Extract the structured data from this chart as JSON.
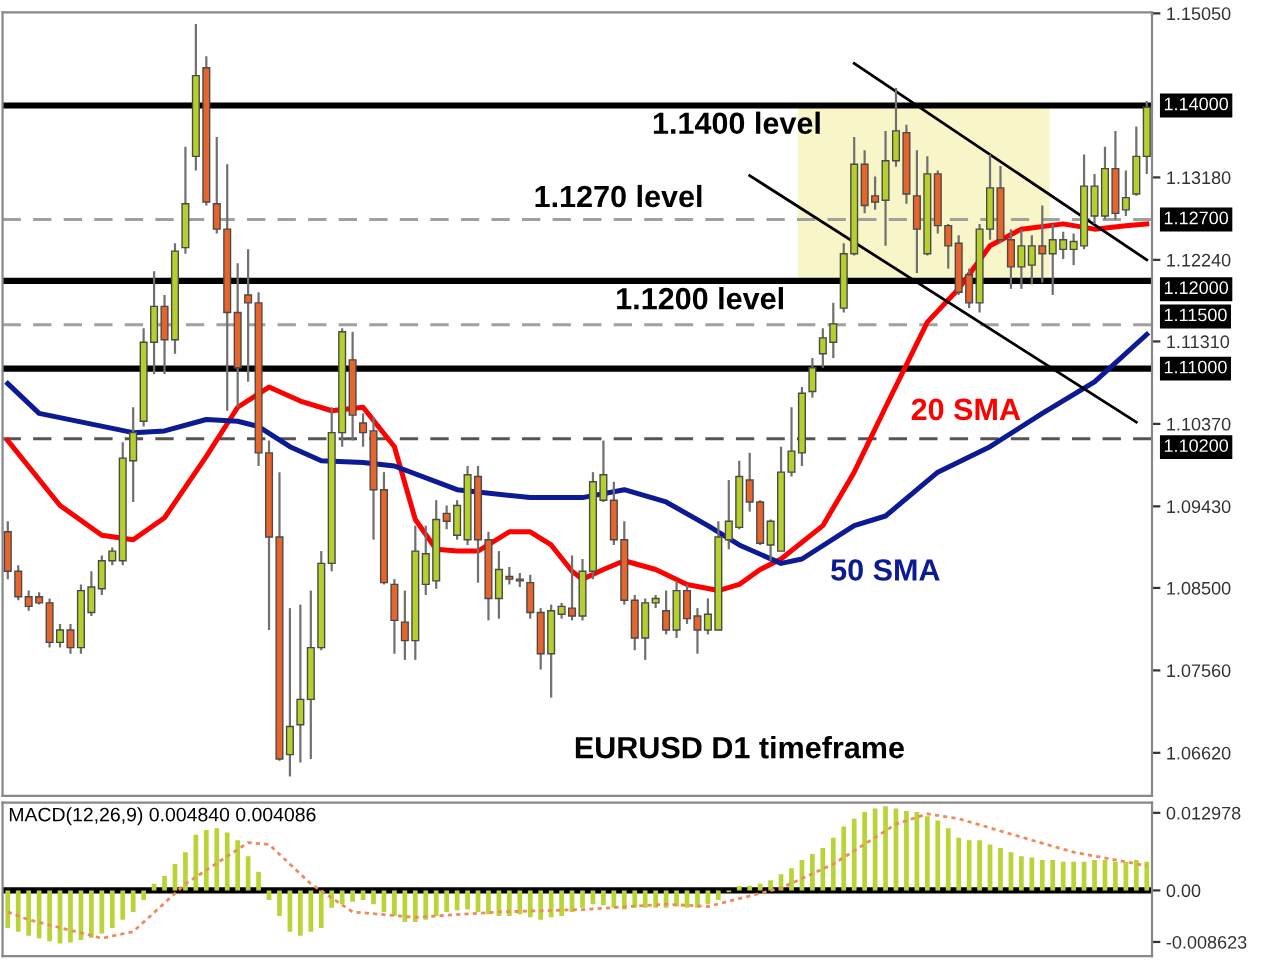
{
  "chart_data": [
    {
      "type": "candlestick",
      "tick_labels": "y",
      "ylim": [
        1.0613,
        1.1506
      ],
      "yticks": [
        {
          "value": 1.1505,
          "label": "1.15050"
        },
        {
          "value": 1.1318,
          "label": "1.13180"
        },
        {
          "value": 1.1224,
          "label": "1.12240"
        },
        {
          "value": 1.1131,
          "label": "1.11310"
        },
        {
          "value": 1.1037,
          "label": "1.10370"
        },
        {
          "value": 1.0943,
          "label": "1.09430"
        },
        {
          "value": 1.085,
          "label": "1.08500"
        },
        {
          "value": 1.0756,
          "label": "1.07560"
        },
        {
          "value": 1.0662,
          "label": "1.06620"
        }
      ],
      "colors": [
        "#e7652b",
        "#e7652b",
        "#e7652b",
        "#e7652b",
        "#e7652b",
        "#b5cf2c",
        "#e7652b",
        "#b5cf2c",
        "#b5cf2c",
        "#b5cf2c",
        "#b5cf2c",
        "#b5cf2c",
        "#b5cf2c",
        "#b5cf2c",
        "#b5cf2c",
        "#e7652b",
        "#b5cf2c",
        "#b5cf2c",
        "#b5cf2c",
        "#e7652b",
        "#e7652b",
        "#e7652b",
        "#e7652b",
        "#e7652b",
        "#e7652b",
        "#e7652b",
        "#e7652b",
        "#b5cf2c",
        "#b5cf2c",
        "#b5cf2c",
        "#b5cf2c",
        "#b5cf2c",
        "#b5cf2c",
        "#e7652b",
        "#e7652b",
        "#e7652b",
        "#e7652b",
        "#e7652b",
        "#e7652b",
        "#b5cf2c",
        "#b5cf2c",
        "#b5cf2c",
        "#e7652b",
        "#b5cf2c",
        "#b5cf2c",
        "#e7652b",
        "#e7652b",
        "#b5cf2c",
        "#e7652b",
        "#e7652b",
        "#e7652b",
        "#e7652b",
        "#b5cf2c",
        "#b5cf2c",
        "#e7652b",
        "#b5cf2c",
        "#b5cf2c",
        "#b5cf2c",
        "#e7652b",
        "#e7652b",
        "#e7652b",
        "#b5cf2c",
        "#b5cf2c",
        "#e7652b",
        "#b5cf2c",
        "#e7652b",
        "#e7652b",
        "#b5cf2c",
        "#b5cf2c",
        "#b5cf2c",
        "#b5cf2c",
        "#e7652b",
        "#e7652b",
        "#b5cf2c",
        "#b5cf2c",
        "#b5cf2c",
        "#b5cf2c",
        "#b5cf2c",
        "#b5cf2c",
        "#b5cf2c",
        "#b5cf2c",
        "#b5cf2c",
        "#e7652b",
        "#e7652b",
        "#b5cf2c",
        "#b5cf2c",
        "#e7652b",
        "#e7652b",
        "#b5cf2c",
        "#e7652b",
        "#e7652b",
        "#e7652b",
        "#e7652b",
        "#b5cf2c",
        "#b5cf2c",
        "#e7652b",
        "#e7652b",
        "#b5cf2c",
        "#b5cf2c",
        "#e7652b",
        "#b5cf2c",
        "#b5cf2c",
        "#b5cf2c",
        "#b5cf2c",
        "#b5cf2c",
        "#b5cf2c",
        "#e7652b",
        "#b5cf2c",
        "#b5cf2c",
        "#b5cf2c"
      ],
      "categories": [
        null,
        null,
        null,
        null,
        null,
        null,
        null,
        null,
        null,
        null,
        null,
        null,
        null,
        null,
        null,
        null,
        null,
        null,
        null,
        null,
        null,
        null,
        null,
        null,
        null,
        null,
        null,
        null,
        null,
        null,
        null,
        null,
        null,
        null,
        null,
        null,
        null,
        null,
        null,
        null,
        null,
        null,
        null,
        null,
        null,
        null,
        null,
        null,
        null,
        null,
        null,
        null,
        null,
        null,
        null,
        null,
        null,
        null,
        null,
        null,
        null,
        null,
        null,
        null,
        null,
        null,
        null,
        null,
        null,
        null,
        null,
        null,
        null,
        null,
        null,
        null,
        null,
        null,
        null,
        null,
        null,
        null,
        null,
        null,
        null,
        null,
        null,
        null,
        null,
        null,
        null,
        null,
        null,
        null,
        null,
        null,
        null,
        null,
        null,
        null,
        null,
        null,
        null,
        null,
        null,
        null,
        null,
        null,
        null,
        null
      ],
      "ohlc": [
        [
          1.0914,
          1.0926,
          1.086,
          1.0869
        ],
        [
          1.0869,
          1.0876,
          1.0836,
          1.084
        ],
        [
          1.084,
          1.0847,
          1.0824,
          1.0829
        ],
        [
          1.084,
          1.0845,
          1.0831,
          1.0833
        ],
        [
          1.0833,
          1.0838,
          1.0782,
          1.0788
        ],
        [
          1.0788,
          1.0809,
          1.0782,
          1.0802
        ],
        [
          1.0802,
          1.0809,
          1.0775,
          1.0782
        ],
        [
          1.0782,
          1.0854,
          1.0775,
          1.0847
        ],
        [
          1.0822,
          1.0869,
          1.0818,
          1.0851
        ],
        [
          1.0849,
          1.0887,
          1.0842,
          1.0881
        ],
        [
          1.0881,
          1.0896,
          1.0876,
          1.0892
        ],
        [
          1.0881,
          1.1016,
          1.0876,
          1.0998
        ],
        [
          1.0995,
          1.1056,
          1.0948,
          1.1027
        ],
        [
          1.104,
          1.1146,
          1.1034,
          1.113
        ],
        [
          1.113,
          1.1211,
          1.1094,
          1.1171
        ],
        [
          1.1171,
          1.1184,
          1.1094,
          1.1133
        ],
        [
          1.1133,
          1.1243,
          1.1117,
          1.1234
        ],
        [
          1.1238,
          1.1353,
          1.1231,
          1.1288
        ],
        [
          1.1342,
          1.1493,
          1.1326,
          1.1434
        ],
        [
          1.1443,
          1.1456,
          1.1286,
          1.129
        ],
        [
          1.1288,
          1.1364,
          1.1254,
          1.1259
        ],
        [
          1.1259,
          1.1333,
          1.1052,
          1.1164
        ],
        [
          1.1164,
          1.122,
          1.1056,
          1.1101
        ],
        [
          1.1184,
          1.1236,
          1.1085,
          1.1175
        ],
        [
          1.1175,
          1.1187,
          1.0989,
          1.1004
        ],
        [
          1.1004,
          1.1018,
          1.0802,
          1.0908
        ],
        [
          1.0908,
          1.0982,
          1.0653,
          1.0655
        ],
        [
          1.066,
          1.0827,
          1.0635,
          1.0692
        ],
        [
          1.0694,
          1.0831,
          1.0651,
          1.0723
        ],
        [
          1.0723,
          1.0847,
          1.0655,
          1.0782
        ],
        [
          1.0782,
          1.0892,
          1.0779,
          1.0878
        ],
        [
          1.0878,
          1.1056,
          1.0869,
          1.1027
        ],
        [
          1.1027,
          1.1146,
          1.1011,
          1.1142
        ],
        [
          1.111,
          1.1142,
          1.1018,
          1.1047
        ],
        [
          1.1038,
          1.1049,
          1.1011,
          1.1027
        ],
        [
          1.1029,
          1.1045,
          1.0905,
          1.0962
        ],
        [
          1.0962,
          1.0982,
          1.0854,
          1.0856
        ],
        [
          1.0854,
          1.086,
          1.0775,
          1.0813
        ],
        [
          1.0811,
          1.0847,
          1.0768,
          1.079
        ],
        [
          1.079,
          1.0921,
          1.0768,
          1.0892
        ],
        [
          1.0854,
          1.0921,
          1.0842,
          1.0889
        ],
        [
          1.0858,
          1.095,
          1.0849,
          1.0928
        ],
        [
          1.0935,
          1.0944,
          1.0917,
          1.0926
        ],
        [
          1.091,
          1.095,
          1.0905,
          1.0944
        ],
        [
          1.0905,
          1.0989,
          1.0899,
          1.0979
        ],
        [
          1.0977,
          1.0989,
          1.0856,
          1.0905
        ],
        [
          1.0905,
          1.0914,
          1.0813,
          1.0838
        ],
        [
          1.0838,
          1.0892,
          1.0815,
          1.0871
        ],
        [
          1.0863,
          1.0874,
          1.0854,
          1.086
        ],
        [
          1.086,
          1.0867,
          1.0851,
          1.0858
        ],
        [
          1.0856,
          1.0865,
          1.0815,
          1.0822
        ],
        [
          1.0822,
          1.0827,
          1.0757,
          1.0775
        ],
        [
          1.0775,
          1.0831,
          1.0725,
          1.0824
        ],
        [
          1.082,
          1.0833,
          1.0815,
          1.0829
        ],
        [
          1.0827,
          1.0887,
          1.0813,
          1.0818
        ],
        [
          1.0818,
          1.0883,
          1.0813,
          1.0869
        ],
        [
          1.0869,
          1.0982,
          1.086,
          1.0971
        ],
        [
          1.095,
          1.1018,
          1.0948,
          1.0979
        ],
        [
          1.095,
          1.0971,
          1.0899,
          1.0905
        ],
        [
          1.0905,
          1.0926,
          1.0831,
          1.0836
        ],
        [
          1.0836,
          1.0842,
          1.0779,
          1.0793
        ],
        [
          1.0793,
          1.0838,
          1.0768,
          1.0833
        ],
        [
          1.0833,
          1.0842,
          1.0827,
          1.0838
        ],
        [
          1.0824,
          1.0847,
          1.0797,
          1.0802
        ],
        [
          1.0802,
          1.0858,
          1.0793,
          1.0847
        ],
        [
          1.0847,
          1.0854,
          1.0809,
          1.0815
        ],
        [
          1.0818,
          1.0827,
          1.0775,
          1.0802
        ],
        [
          1.0802,
          1.0838,
          1.0797,
          1.082
        ],
        [
          1.0802,
          1.0926,
          1.0802,
          1.0908
        ],
        [
          1.0905,
          1.0973,
          1.0894,
          1.0926
        ],
        [
          1.0919,
          1.0995,
          1.0917,
          1.0977
        ],
        [
          1.0973,
          1.1004,
          1.0937,
          1.0948
        ],
        [
          1.0948,
          1.095,
          1.0899,
          1.0901
        ],
        [
          1.0899,
          1.0928,
          1.0881,
          1.0926
        ],
        [
          1.0892,
          1.1011,
          1.0892,
          1.0982
        ],
        [
          1.0982,
          1.1056,
          1.0977,
          1.1006
        ],
        [
          1.1004,
          1.1079,
          1.0989,
          1.1072
        ],
        [
          1.1074,
          1.1112,
          1.1067,
          1.1101
        ],
        [
          1.1117,
          1.1146,
          1.1101,
          1.1135
        ],
        [
          1.113,
          1.1175,
          1.1112,
          1.1151
        ],
        [
          1.1169,
          1.1243,
          1.1164,
          1.1231
        ],
        [
          1.1231,
          1.1364,
          1.1229,
          1.1333
        ],
        [
          1.1333,
          1.1349,
          1.1277,
          1.1286
        ],
        [
          1.1297,
          1.1319,
          1.1281,
          1.129
        ],
        [
          1.1292,
          1.1371,
          1.124,
          1.1337
        ],
        [
          1.1337,
          1.142,
          1.133,
          1.1371
        ],
        [
          1.1369,
          1.1378,
          1.1288,
          1.1299
        ],
        [
          1.1297,
          1.1349,
          1.1209,
          1.1259
        ],
        [
          1.1231,
          1.1342,
          1.1229,
          1.1322
        ],
        [
          1.1322,
          1.1326,
          1.1254,
          1.1263
        ],
        [
          1.1263,
          1.1265,
          1.1214,
          1.124
        ],
        [
          1.1243,
          1.1252,
          1.1184,
          1.1187
        ],
        [
          1.1207,
          1.1214,
          1.1169,
          1.1175
        ],
        [
          1.1175,
          1.1265,
          1.1164,
          1.1259
        ],
        [
          1.1259,
          1.1344,
          1.1247,
          1.1306
        ],
        [
          1.1306,
          1.1331,
          1.1243,
          1.1247
        ],
        [
          1.1247,
          1.1259,
          1.1191,
          1.1216
        ],
        [
          1.1216,
          1.1259,
          1.1191,
          1.124
        ],
        [
          1.1218,
          1.1252,
          1.1196,
          1.124
        ],
        [
          1.124,
          1.1286,
          1.1198,
          1.1231
        ],
        [
          1.1231,
          1.1265,
          1.1184,
          1.1247
        ],
        [
          1.1236,
          1.1256,
          1.1225,
          1.1247
        ],
        [
          1.1236,
          1.1254,
          1.1218,
          1.1245
        ],
        [
          1.124,
          1.1344,
          1.1236,
          1.1308
        ],
        [
          1.1274,
          1.1322,
          1.1265,
          1.1308
        ],
        [
          1.1274,
          1.1353,
          1.127,
          1.1328
        ],
        [
          1.1328,
          1.1371,
          1.127,
          1.1277
        ],
        [
          1.1281,
          1.1326,
          1.1274,
          1.1295
        ],
        [
          1.1299,
          1.1376,
          1.1297,
          1.1342
        ],
        [
          1.1342,
          1.1405,
          1.1322,
          1.1398
        ]
      ],
      "series": [
        {
          "type": "line",
          "name": "20 SMA",
          "color": "#ff0000",
          "values": [
            1.1018,
            null,
            null,
            null,
            null,
            1.0944,
            null,
            null,
            null,
            1.091,
            null,
            null,
            1.0905,
            null,
            null,
            1.093,
            null,
            null,
            null,
            1.1,
            null,
            null,
            1.1056,
            null,
            null,
            1.1079,
            null,
            null,
            1.1063,
            null,
            null,
            1.1052,
            null,
            null,
            1.1056,
            null,
            null,
            1.1011,
            null,
            1.0928,
            null,
            1.0894,
            null,
            1.0892,
            null,
            1.0892,
            null,
            null,
            1.0914,
            null,
            1.0914,
            null,
            1.0899,
            null,
            1.0869,
            1.086,
            null,
            1.0871,
            null,
            1.0881,
            null,
            null,
            1.0871,
            null,
            null,
            1.0854,
            null,
            null,
            1.0847,
            null,
            1.0854,
            null,
            1.0871,
            null,
            1.0883,
            null,
            null,
            null,
            1.0921,
            null,
            null,
            1.0982,
            null,
            null,
            1.1056,
            null,
            null,
            null,
            1.1153,
            null,
            null,
            1.1191,
            null,
            null,
            1.124,
            null,
            null,
            1.1259,
            null,
            null,
            null,
            1.1265,
            null,
            null,
            1.1259,
            null,
            null,
            1.1263,
            null,
            1.1265
          ]
        },
        {
          "type": "line",
          "name": "50 SMA",
          "color": "#0c1a94",
          "values": [
            1.1083,
            null,
            null,
            1.1049,
            null,
            null,
            null,
            null,
            null,
            null,
            null,
            null,
            1.1027,
            null,
            null,
            1.1029,
            null,
            null,
            null,
            1.1042,
            null,
            null,
            1.104,
            null,
            1.1034,
            null,
            null,
            1.1011,
            null,
            null,
            1.0995,
            null,
            null,
            null,
            1.0993,
            null,
            null,
            1.0989,
            null,
            null,
            null,
            null,
            null,
            1.0962,
            null,
            null,
            null,
            null,
            null,
            null,
            1.0953,
            null,
            null,
            null,
            null,
            1.0953,
            null,
            null,
            null,
            1.0962,
            null,
            null,
            null,
            1.0948,
            null,
            null,
            null,
            1.0921,
            null,
            null,
            1.0899,
            null,
            null,
            null,
            1.0878,
            null,
            1.0883,
            null,
            null,
            null,
            null,
            1.0921,
            null,
            null,
            1.0932,
            null,
            null,
            null,
            null,
            1.0982,
            null,
            null,
            null,
            null,
            1.1011,
            null,
            null,
            null,
            null,
            1.1049,
            null,
            null,
            null,
            null,
            1.1085,
            null,
            null,
            null,
            null,
            1.1139
          ]
        },
        {
          "type": "line",
          "color": "#000000",
          "values": [
            null,
            null,
            null,
            null,
            null,
            null,
            null,
            null,
            null,
            null,
            null,
            null,
            null,
            null,
            null,
            null,
            null,
            null,
            null,
            null,
            null,
            null,
            null,
            null,
            null,
            null,
            null,
            null,
            null,
            null,
            null,
            null,
            null,
            null,
            null,
            null,
            null,
            null,
            null,
            null,
            null,
            null,
            null,
            null,
            null,
            null,
            null,
            null,
            null,
            null,
            null,
            null,
            null,
            null,
            null,
            null,
            null,
            null,
            null,
            null,
            null,
            null,
            null,
            null,
            null,
            null,
            null,
            null,
            null,
            null,
            null,
            null,
            null,
            null,
            null,
            null,
            null,
            null,
            null,
            null,
            null,
            1.1448,
            null,
            null,
            null,
            null,
            null,
            null,
            null,
            null,
            null,
            null,
            null,
            null,
            null,
            null,
            null,
            null,
            null,
            null,
            null,
            null,
            null,
            null,
            null,
            null,
            null,
            null,
            null,
            1.1224
          ]
        },
        {
          "type": "line",
          "color": "#000000",
          "values": [
            null,
            null,
            null,
            null,
            null,
            null,
            null,
            null,
            null,
            null,
            null,
            null,
            null,
            null,
            null,
            null,
            null,
            null,
            null,
            null,
            null,
            null,
            null,
            null,
            null,
            null,
            null,
            null,
            null,
            null,
            null,
            null,
            null,
            null,
            null,
            null,
            null,
            null,
            null,
            null,
            null,
            null,
            null,
            null,
            null,
            null,
            null,
            null,
            null,
            null,
            null,
            null,
            null,
            null,
            null,
            null,
            null,
            null,
            null,
            null,
            null,
            null,
            null,
            null,
            null,
            null,
            null,
            null,
            null,
            null,
            null,
            1.132,
            null,
            null,
            null,
            null,
            null,
            null,
            null,
            null,
            null,
            null,
            null,
            null,
            null,
            null,
            null,
            null,
            null,
            null,
            null,
            null,
            null,
            null,
            null,
            null,
            null,
            null,
            null,
            null,
            null,
            null,
            null,
            null,
            null,
            null,
            null,
            null,
            1.1039,
            null
          ]
        }
      ],
      "ref_lines": [
        {
          "axis": "y",
          "value": 1.14,
          "label": "1.14000",
          "color": "#000000",
          "line_style": "solid"
        },
        {
          "axis": "y",
          "value": 1.127,
          "label": "1.12700",
          "color": "#a0a0a0",
          "line_style": "dashed"
        },
        {
          "axis": "y",
          "value": 1.12,
          "label": "1.12000",
          "color": "#000000",
          "line_style": "solid"
        },
        {
          "axis": "y",
          "value": 1.115,
          "label": "1.11500",
          "color": "#a0a0a0",
          "line_style": "dashed"
        },
        {
          "axis": "y",
          "value": 1.11,
          "label": "1.11000",
          "color": "#000000",
          "line_style": "solid"
        },
        {
          "axis": "y",
          "value": 1.102,
          "label": "1.10200",
          "color": "#555555",
          "line_style": "dashed"
        }
      ],
      "bands": [
        {
          "axis": "y",
          "from": 1.12,
          "to": 1.14,
          "color": "#f8f6c8"
        }
      ],
      "annotations": [
        {
          "text": "1.1400 level",
          "y": 1.14
        },
        {
          "text": "1.1270 level",
          "y": 1.127
        },
        {
          "text": "1.1200 level",
          "y": 1.12
        },
        "EURUSD D1 timeframe"
      ]
    },
    {
      "type": "bar",
      "title": "MACD(12,26,9) 0.004840 0.004086",
      "tick_labels": "y",
      "ylim": [
        -0.011,
        0.0147
      ],
      "yticks": [
        0.012978,
        {
          "value": 0,
          "label": "0.00"
        },
        -0.008623
      ],
      "categories": [
        null,
        null,
        null,
        null,
        null,
        null,
        null,
        null,
        null,
        null,
        null,
        null,
        null,
        null,
        null,
        null,
        null,
        null,
        null,
        null,
        null,
        null,
        null,
        null,
        null,
        null,
        null,
        null,
        null,
        null,
        null,
        null,
        null,
        null,
        null,
        null,
        null,
        null,
        null,
        null,
        null,
        null,
        null,
        null,
        null,
        null,
        null,
        null,
        null,
        null,
        null,
        null,
        null,
        null,
        null,
        null,
        null,
        null,
        null,
        null,
        null,
        null,
        null,
        null,
        null,
        null,
        null,
        null,
        null,
        null,
        null,
        null,
        null,
        null,
        null,
        null,
        null,
        null,
        null,
        null,
        null,
        null,
        null,
        null,
        null,
        null,
        null,
        null,
        null,
        null,
        null,
        null,
        null,
        null,
        null,
        null,
        null,
        null,
        null,
        null,
        null,
        null,
        null,
        null,
        null,
        null,
        null,
        null,
        null,
        null
      ],
      "series": [
        {
          "type": "bar",
          "color": "#b8d436",
          "values": [
            -0.0063,
            -0.0069,
            -0.0076,
            -0.008,
            -0.0085,
            -0.0089,
            -0.0087,
            -0.0083,
            -0.0079,
            -0.0072,
            -0.0063,
            -0.0049,
            -0.0036,
            -0.0016,
            0.0011,
            0.0024,
            0.0044,
            0.0064,
            0.0093,
            0.0101,
            0.0104,
            0.0097,
            0.0084,
            0.0057,
            0.0031,
            -0.0016,
            -0.0043,
            -0.0069,
            -0.0076,
            -0.0069,
            -0.0063,
            -0.0029,
            -0.0023,
            -0.0019,
            -0.0016,
            -0.0023,
            -0.0036,
            -0.0043,
            -0.0053,
            -0.0053,
            -0.0049,
            -0.0043,
            -0.0036,
            -0.0033,
            -0.0032,
            -0.0036,
            -0.004,
            -0.0043,
            -0.0043,
            -0.004,
            -0.0045,
            -0.0049,
            -0.0045,
            -0.0043,
            -0.0036,
            -0.0029,
            -0.0023,
            -0.0025,
            -0.0029,
            -0.0032,
            -0.0029,
            -0.0029,
            -0.0029,
            -0.0029,
            -0.0027,
            -0.0029,
            -0.0029,
            -0.0023,
            -0.0016,
            -0.0003,
            0.0007,
            0.0008,
            0.0011,
            0.0017,
            0.0027,
            0.0037,
            0.0051,
            0.0061,
            0.0071,
            0.0088,
            0.0107,
            0.012,
            0.0131,
            0.0137,
            0.0141,
            0.0137,
            0.0133,
            0.0131,
            0.0124,
            0.0117,
            0.0104,
            0.0088,
            0.0084,
            0.0084,
            0.0077,
            0.0071,
            0.0064,
            0.0057,
            0.0055,
            0.0051,
            0.0051,
            0.0048,
            0.0048,
            0.0048,
            0.0051,
            0.0051,
            0.0048,
            0.0048,
            0.0051,
            0.0048
          ]
        },
        {
          "type": "line",
          "color": "#f08a5d",
          "line_style": "dotted",
          "values": [
            -0.0036,
            null,
            -0.0049,
            null,
            null,
            null,
            null,
            null,
            null,
            -0.008,
            null,
            null,
            -0.0069,
            null,
            null,
            null,
            null,
            0.0011,
            null,
            null,
            null,
            null,
            null,
            0.008,
            null,
            0.0077,
            null,
            null,
            null,
            0.0011,
            null,
            null,
            null,
            -0.0036,
            null,
            null,
            null,
            null,
            null,
            -0.0045,
            null,
            null,
            null,
            null,
            null,
            null,
            null,
            -0.0036,
            null,
            null,
            null,
            null,
            null,
            null,
            null,
            -0.0032,
            null,
            null,
            null,
            null,
            null,
            null,
            null,
            -0.0023,
            null,
            null,
            null,
            -0.0027,
            null,
            null,
            null,
            null,
            null,
            null,
            0.0004,
            null,
            null,
            null,
            null,
            0.0044,
            null,
            null,
            null,
            null,
            null,
            0.0111,
            null,
            null,
            0.0128,
            null,
            null,
            0.012,
            null,
            null,
            null,
            null,
            null,
            null,
            0.0084,
            null,
            null,
            null,
            0.0064,
            null,
            null,
            null,
            null,
            0.0048,
            null,
            0.0041
          ]
        }
      ],
      "ref_lines": [
        {
          "axis": "y",
          "value": 0,
          "color": "#000000",
          "line_style": "solid"
        }
      ]
    }
  ]
}
